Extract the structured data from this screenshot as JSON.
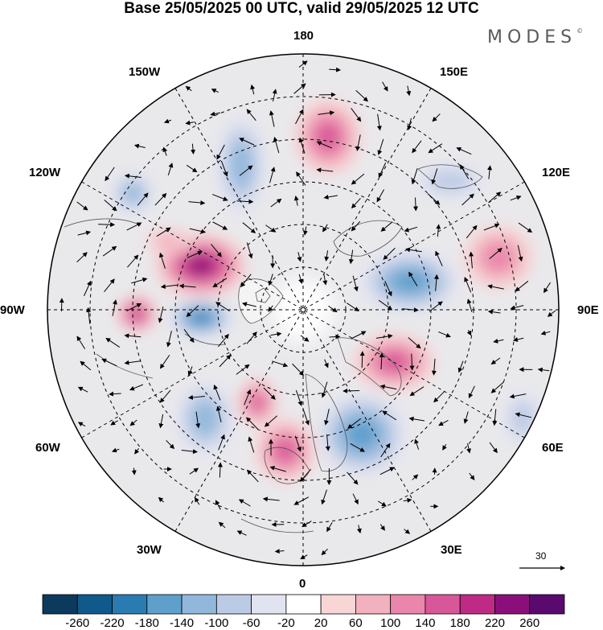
{
  "title": "Base 25/05/2025 00 UTC, valid 29/05/2025 12 UTC",
  "brand": "MODES",
  "brand_mark": "©",
  "longitude_labels": {
    "n180": "180",
    "n150w": "150W",
    "n150e": "150E",
    "n120w": "120W",
    "n120e": "120E",
    "n90w": "90W",
    "n90e": "90E",
    "n60w": "60W",
    "n60e": "60E",
    "n30w": "30W",
    "n30e": "30E",
    "n0": "0"
  },
  "vector_scale": "30",
  "colorbar": {
    "labels": [
      "-260",
      "-220",
      "-180",
      "-140",
      "-100",
      "-60",
      "-20",
      "20",
      "60",
      "100",
      "140",
      "180",
      "220",
      "260"
    ],
    "colors": [
      "#0b3a5c",
      "#0f5a8a",
      "#2b7bb3",
      "#5f9fcc",
      "#91b8dc",
      "#bccbe5",
      "#e2e3f0",
      "#ffffff",
      "#f8d6d6",
      "#f2b1be",
      "#ea86ab",
      "#d85798",
      "#bf2a85",
      "#8a0f7a",
      "#5a0a6e"
    ]
  },
  "anomalies": [
    {
      "sign": "neg",
      "strength": 3
    },
    {
      "sign": "pos",
      "strength": 4
    },
    {
      "sign": "neg",
      "strength": 3
    },
    {
      "sign": "pos",
      "strength": 6
    },
    {
      "sign": "neg",
      "strength": 4
    },
    {
      "sign": "pos",
      "strength": 4
    },
    {
      "sign": "neg",
      "strength": 4
    },
    {
      "sign": "pos",
      "strength": 4
    },
    {
      "sign": "neg",
      "strength": 5
    },
    {
      "sign": "pos",
      "strength": 5
    },
    {
      "sign": "neg",
      "strength": 3
    },
    {
      "sign": "pos",
      "strength": 4
    },
    {
      "sign": "neg",
      "strength": 2
    },
    {
      "sign": "pos",
      "strength": 3
    },
    {
      "sign": "pos",
      "strength": 2
    },
    {
      "sign": "neg",
      "strength": 2
    }
  ]
}
